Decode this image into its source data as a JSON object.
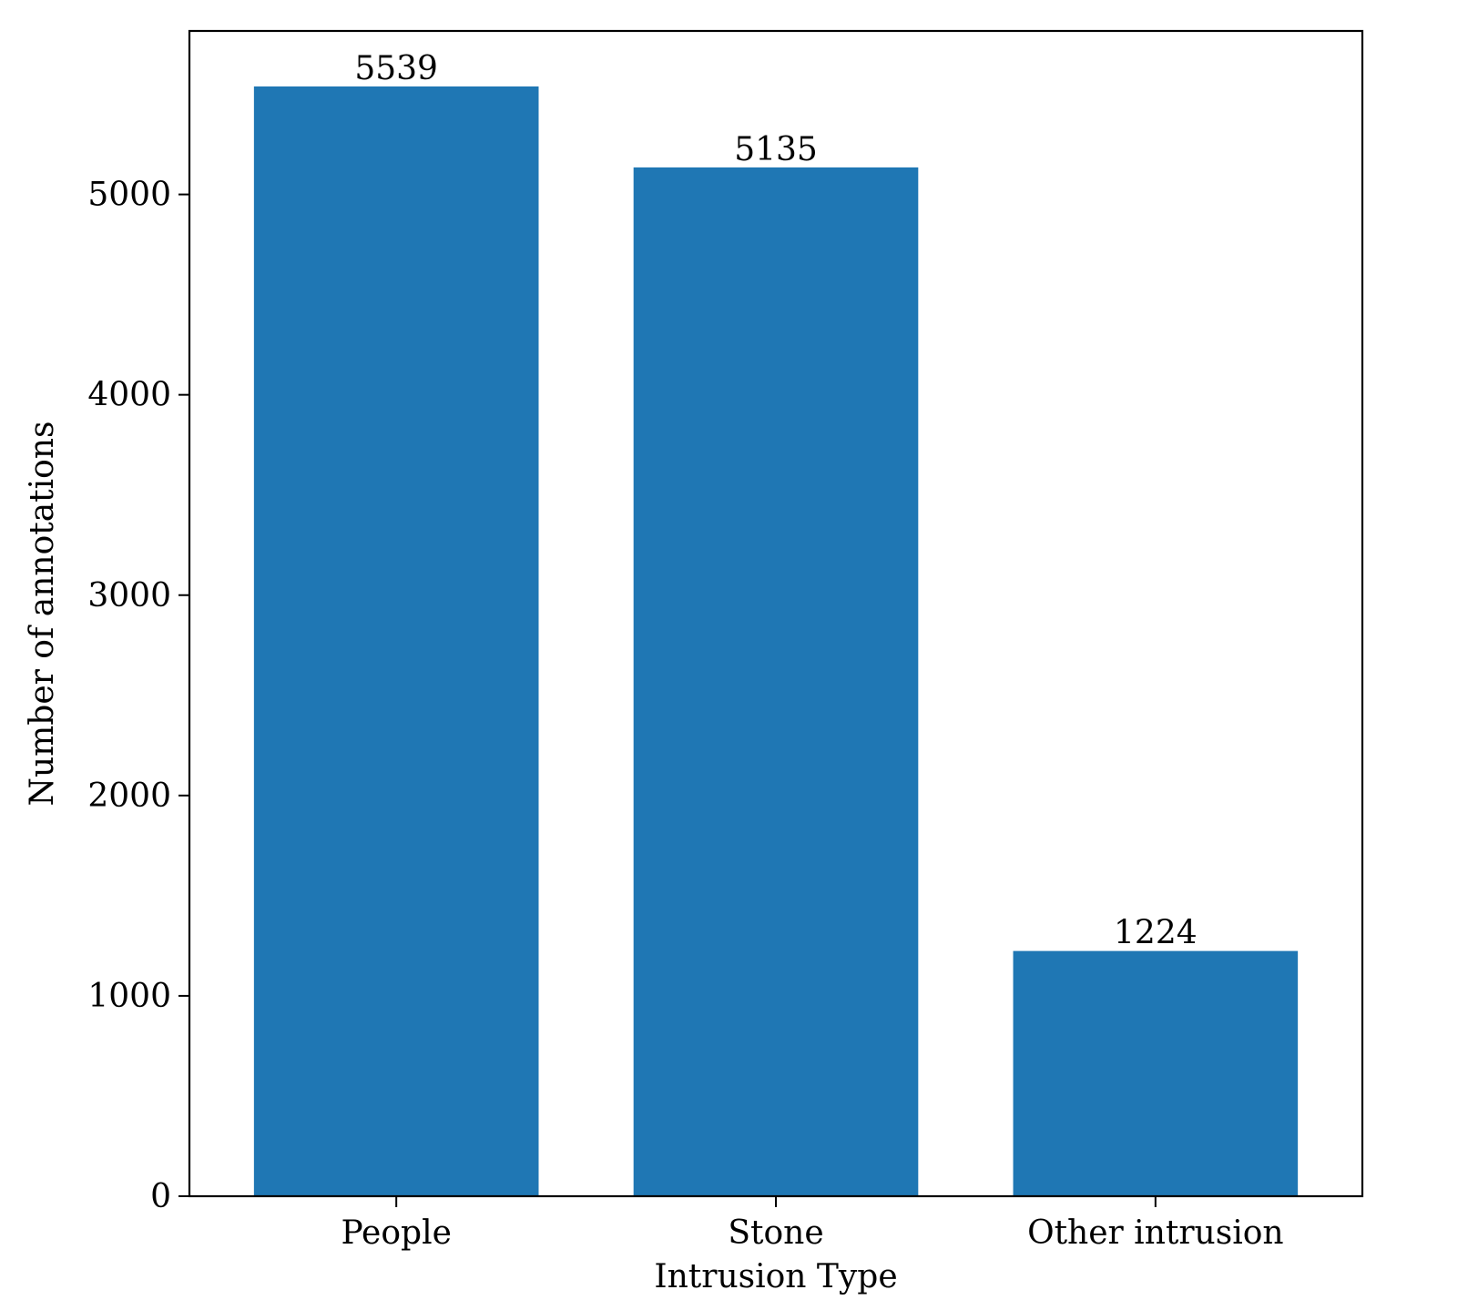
{
  "chart_data": {
    "type": "bar",
    "categories": [
      "People",
      "Stone",
      "Other intrusion"
    ],
    "values": [
      5539,
      5135,
      1224
    ],
    "data_labels": [
      "5539",
      "5135",
      "1224"
    ],
    "xlabel": "Intrusion Type",
    "ylabel": "Number of annotations",
    "ylim": [
      0,
      5816
    ],
    "yticks": [
      0,
      1000,
      2000,
      3000,
      4000,
      5000
    ],
    "ytick_labels": [
      "0",
      "1000",
      "2000",
      "3000",
      "4000",
      "5000"
    ],
    "bar_color": "#1f77b4",
    "grid": false,
    "legend": "none"
  }
}
